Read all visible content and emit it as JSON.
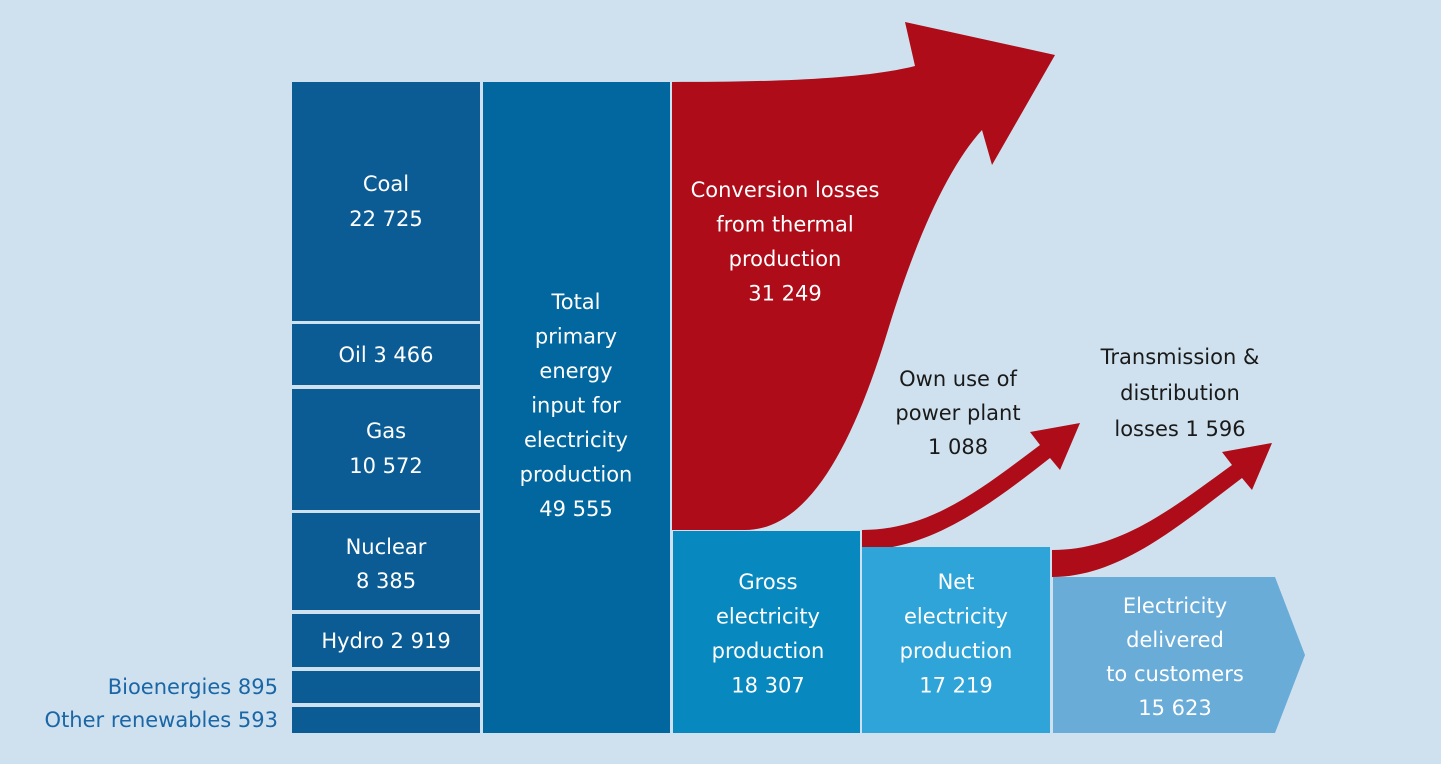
{
  "sources": [
    {
      "lines": [
        "Coal",
        "22 725"
      ]
    },
    {
      "lines": [
        "Oil 3 466"
      ]
    },
    {
      "lines": [
        "Gas",
        "10 572"
      ]
    },
    {
      "lines": [
        "Nuclear",
        "8 385"
      ]
    },
    {
      "lines": [
        "Hydro 2 919"
      ]
    },
    {
      "lines": [
        "Bioenergies 895"
      ]
    },
    {
      "lines": [
        "Other renewables 593"
      ]
    }
  ],
  "total": {
    "lines": [
      "Total",
      "primary",
      "energy",
      "input for",
      "electricity",
      "production",
      "49 555"
    ]
  },
  "conversion_losses": {
    "lines": [
      "Conversion losses",
      "from thermal",
      "production",
      "31 249"
    ]
  },
  "own_use": {
    "lines": [
      "Own use of",
      "power plant",
      "1 088"
    ]
  },
  "transmission_losses": {
    "lines": [
      "Transmission &",
      "distribution",
      "losses 1 596"
    ]
  },
  "gross": {
    "lines": [
      "Gross",
      "electricity",
      "production",
      "18 307"
    ]
  },
  "net": {
    "lines": [
      "Net",
      "electricity",
      "production",
      "17 219"
    ]
  },
  "delivered": {
    "lines": [
      "Electricity",
      "delivered",
      "to customers",
      "15 623"
    ]
  }
}
